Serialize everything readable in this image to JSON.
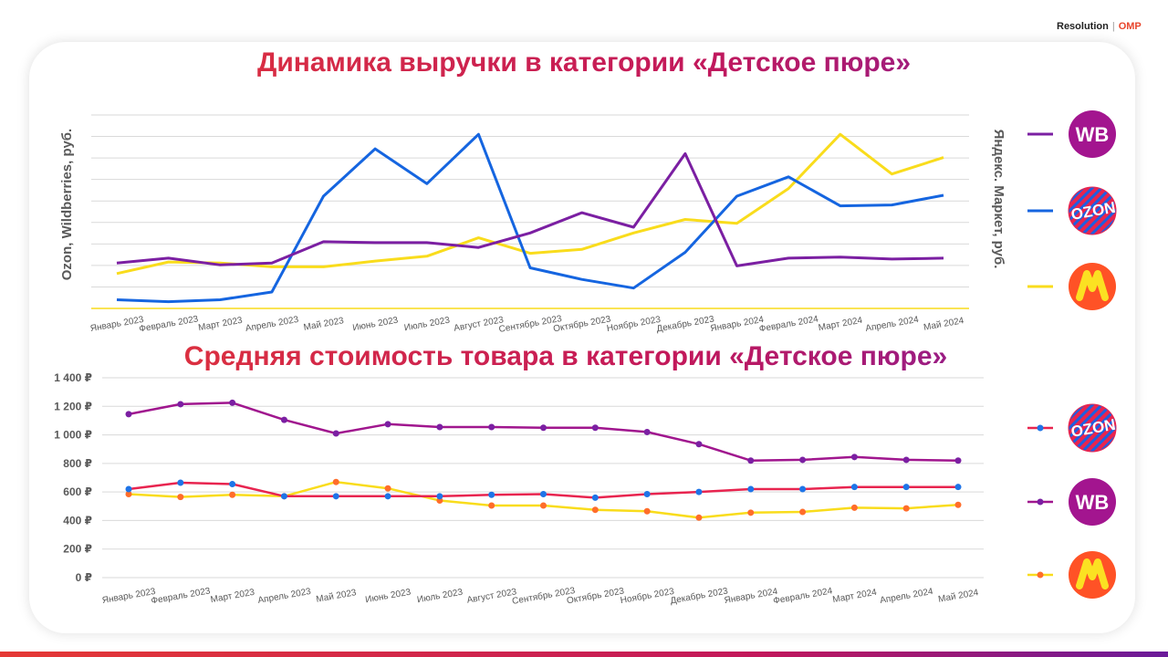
{
  "brand": {
    "name": "Resolution",
    "separator": "|",
    "logo_text": "ОМР"
  },
  "colors": {
    "wb": "#7b1fa2",
    "ozon": "#1565e0",
    "ym": "#f9dc1c",
    "grid": "#d9d9d9",
    "marker_ym": "#ff6d2a"
  },
  "chart_data": [
    {
      "type": "line",
      "title": "Динамика выручки в категории «Детское пюре»",
      "ylabel_left": "Ozon, Wildberries, руб.",
      "ylabel_right": "Яндекс. Маркет, руб.",
      "categories": [
        "Январь 2023",
        "Февраль 2023",
        "Март  2023",
        "Апрель 2023",
        "Май  2023",
        "Июнь 2023",
        "Июль 2023",
        "Август 2023",
        "Сентябрь 2023",
        "Октябрь 2023",
        "Ноябрь 2023",
        "Декабрь 2023",
        "Январь 2024",
        "Февраль 2024",
        "Март 2024",
        "Апрель 2024",
        "Май 2024"
      ],
      "ylim": [
        0,
        10
      ],
      "series": [
        {
          "name": "WB",
          "icon": "wb-logo",
          "color": "#7b1fa2",
          "axis": "left",
          "values": [
            2.35,
            2.6,
            2.25,
            2.35,
            3.45,
            3.4,
            3.4,
            3.15,
            3.9,
            4.95,
            4.2,
            8.0,
            2.2,
            2.6,
            2.65,
            2.55,
            2.6
          ]
        },
        {
          "name": "OZON",
          "icon": "ozon-logo",
          "color": "#1565e0",
          "axis": "left",
          "values": [
            0.45,
            0.35,
            0.45,
            0.85,
            5.8,
            8.25,
            6.45,
            9.0,
            2.1,
            1.5,
            1.05,
            2.9,
            5.8,
            6.8,
            5.3,
            5.35,
            5.85
          ]
        },
        {
          "name": "Яндекс Маркет",
          "icon": "yandex-market-logo",
          "color": "#f9dc1c",
          "axis": "right",
          "values": [
            1.8,
            2.4,
            2.35,
            2.15,
            2.15,
            2.45,
            2.7,
            3.65,
            2.85,
            3.05,
            3.9,
            4.6,
            4.4,
            6.2,
            9.0,
            6.95,
            7.8
          ]
        }
      ],
      "grid": true,
      "legend": "right"
    },
    {
      "type": "line",
      "title": "Средняя стоимость товара в категории «Детское пюре»",
      "categories": [
        "Январь 2023",
        "Февраль 2023",
        "Март  2023",
        "Апрель 2023",
        "Май  2023",
        "Июнь 2023",
        "Июль 2023",
        "Август 2023",
        "Сентябрь 2023",
        "Октябрь 2023",
        "Ноябрь 2023",
        "Декабрь 2023",
        "Январь 2024",
        "Февраль 2024",
        "Март 2024",
        "Апрель 2024",
        "Май 2024"
      ],
      "yticks": [
        "0 ₽",
        "200 ₽",
        "400 ₽",
        "600 ₽",
        "800 ₽",
        "1 000 ₽",
        "1 200 ₽",
        "1 400 ₽"
      ],
      "ylim": [
        0,
        1400
      ],
      "series": [
        {
          "name": "OZON",
          "icon": "ozon-logo",
          "color": "#e8244f",
          "marker_color": "#1e74e8",
          "values": [
            620,
            665,
            655,
            570,
            570,
            570,
            570,
            580,
            585,
            560,
            585,
            600,
            620,
            620,
            635,
            635,
            635
          ]
        },
        {
          "name": "WB",
          "icon": "wb-logo",
          "color": "#a0168e",
          "marker_color": "#7b1fa2",
          "values": [
            1145,
            1215,
            1225,
            1105,
            1010,
            1075,
            1055,
            1055,
            1050,
            1050,
            1020,
            935,
            820,
            825,
            845,
            825,
            820
          ]
        },
        {
          "name": "Яндекс Маркет",
          "icon": "yandex-market-logo",
          "color": "#f9dc1c",
          "marker_color": "#ff6d2a",
          "values": [
            585,
            565,
            580,
            570,
            670,
            625,
            540,
            505,
            505,
            475,
            465,
            420,
            455,
            460,
            490,
            485,
            510
          ]
        }
      ],
      "grid": true,
      "legend": "right"
    }
  ]
}
